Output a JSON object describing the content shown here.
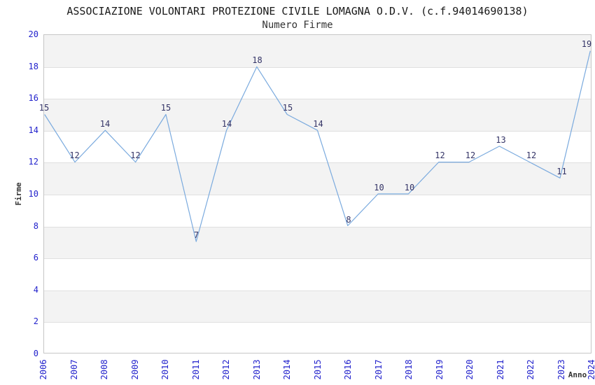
{
  "header": {
    "title": "ASSOCIAZIONE VOLONTARI PROTEZIONE CIVILE LOMAGNA O.D.V. (c.f.94014690138)",
    "subtitle": "Numero Firme"
  },
  "chart_data": {
    "type": "line",
    "title": "ASSOCIAZIONE VOLONTARI PROTEZIONE CIVILE LOMAGNA O.D.V. (c.f.94014690138)",
    "subtitle": "Numero Firme",
    "xlabel": "Anno",
    "ylabel": "Firme",
    "categories": [
      "2006",
      "2007",
      "2008",
      "2009",
      "2010",
      "2011",
      "2012",
      "2013",
      "2014",
      "2015",
      "2016",
      "2017",
      "2018",
      "2019",
      "2020",
      "2021",
      "2022",
      "2023",
      "2024"
    ],
    "values": [
      15,
      12,
      14,
      12,
      15,
      7,
      14,
      18,
      15,
      14,
      8,
      10,
      10,
      12,
      12,
      13,
      12,
      11,
      19
    ],
    "ylim": [
      0,
      20
    ],
    "ytick_step": 2,
    "grid": true,
    "alternating_bands": true,
    "legend": "none",
    "point_labels_visible": true,
    "colors": {
      "line": "#7aaade",
      "data_label": "#333366",
      "tick_label": "#2222cc",
      "band": "#f3f3f3",
      "gridline": "#e0e0e0",
      "axis_border": "#c6c6c6",
      "title": "#1a1a1a",
      "axis_title": "#333333"
    }
  }
}
